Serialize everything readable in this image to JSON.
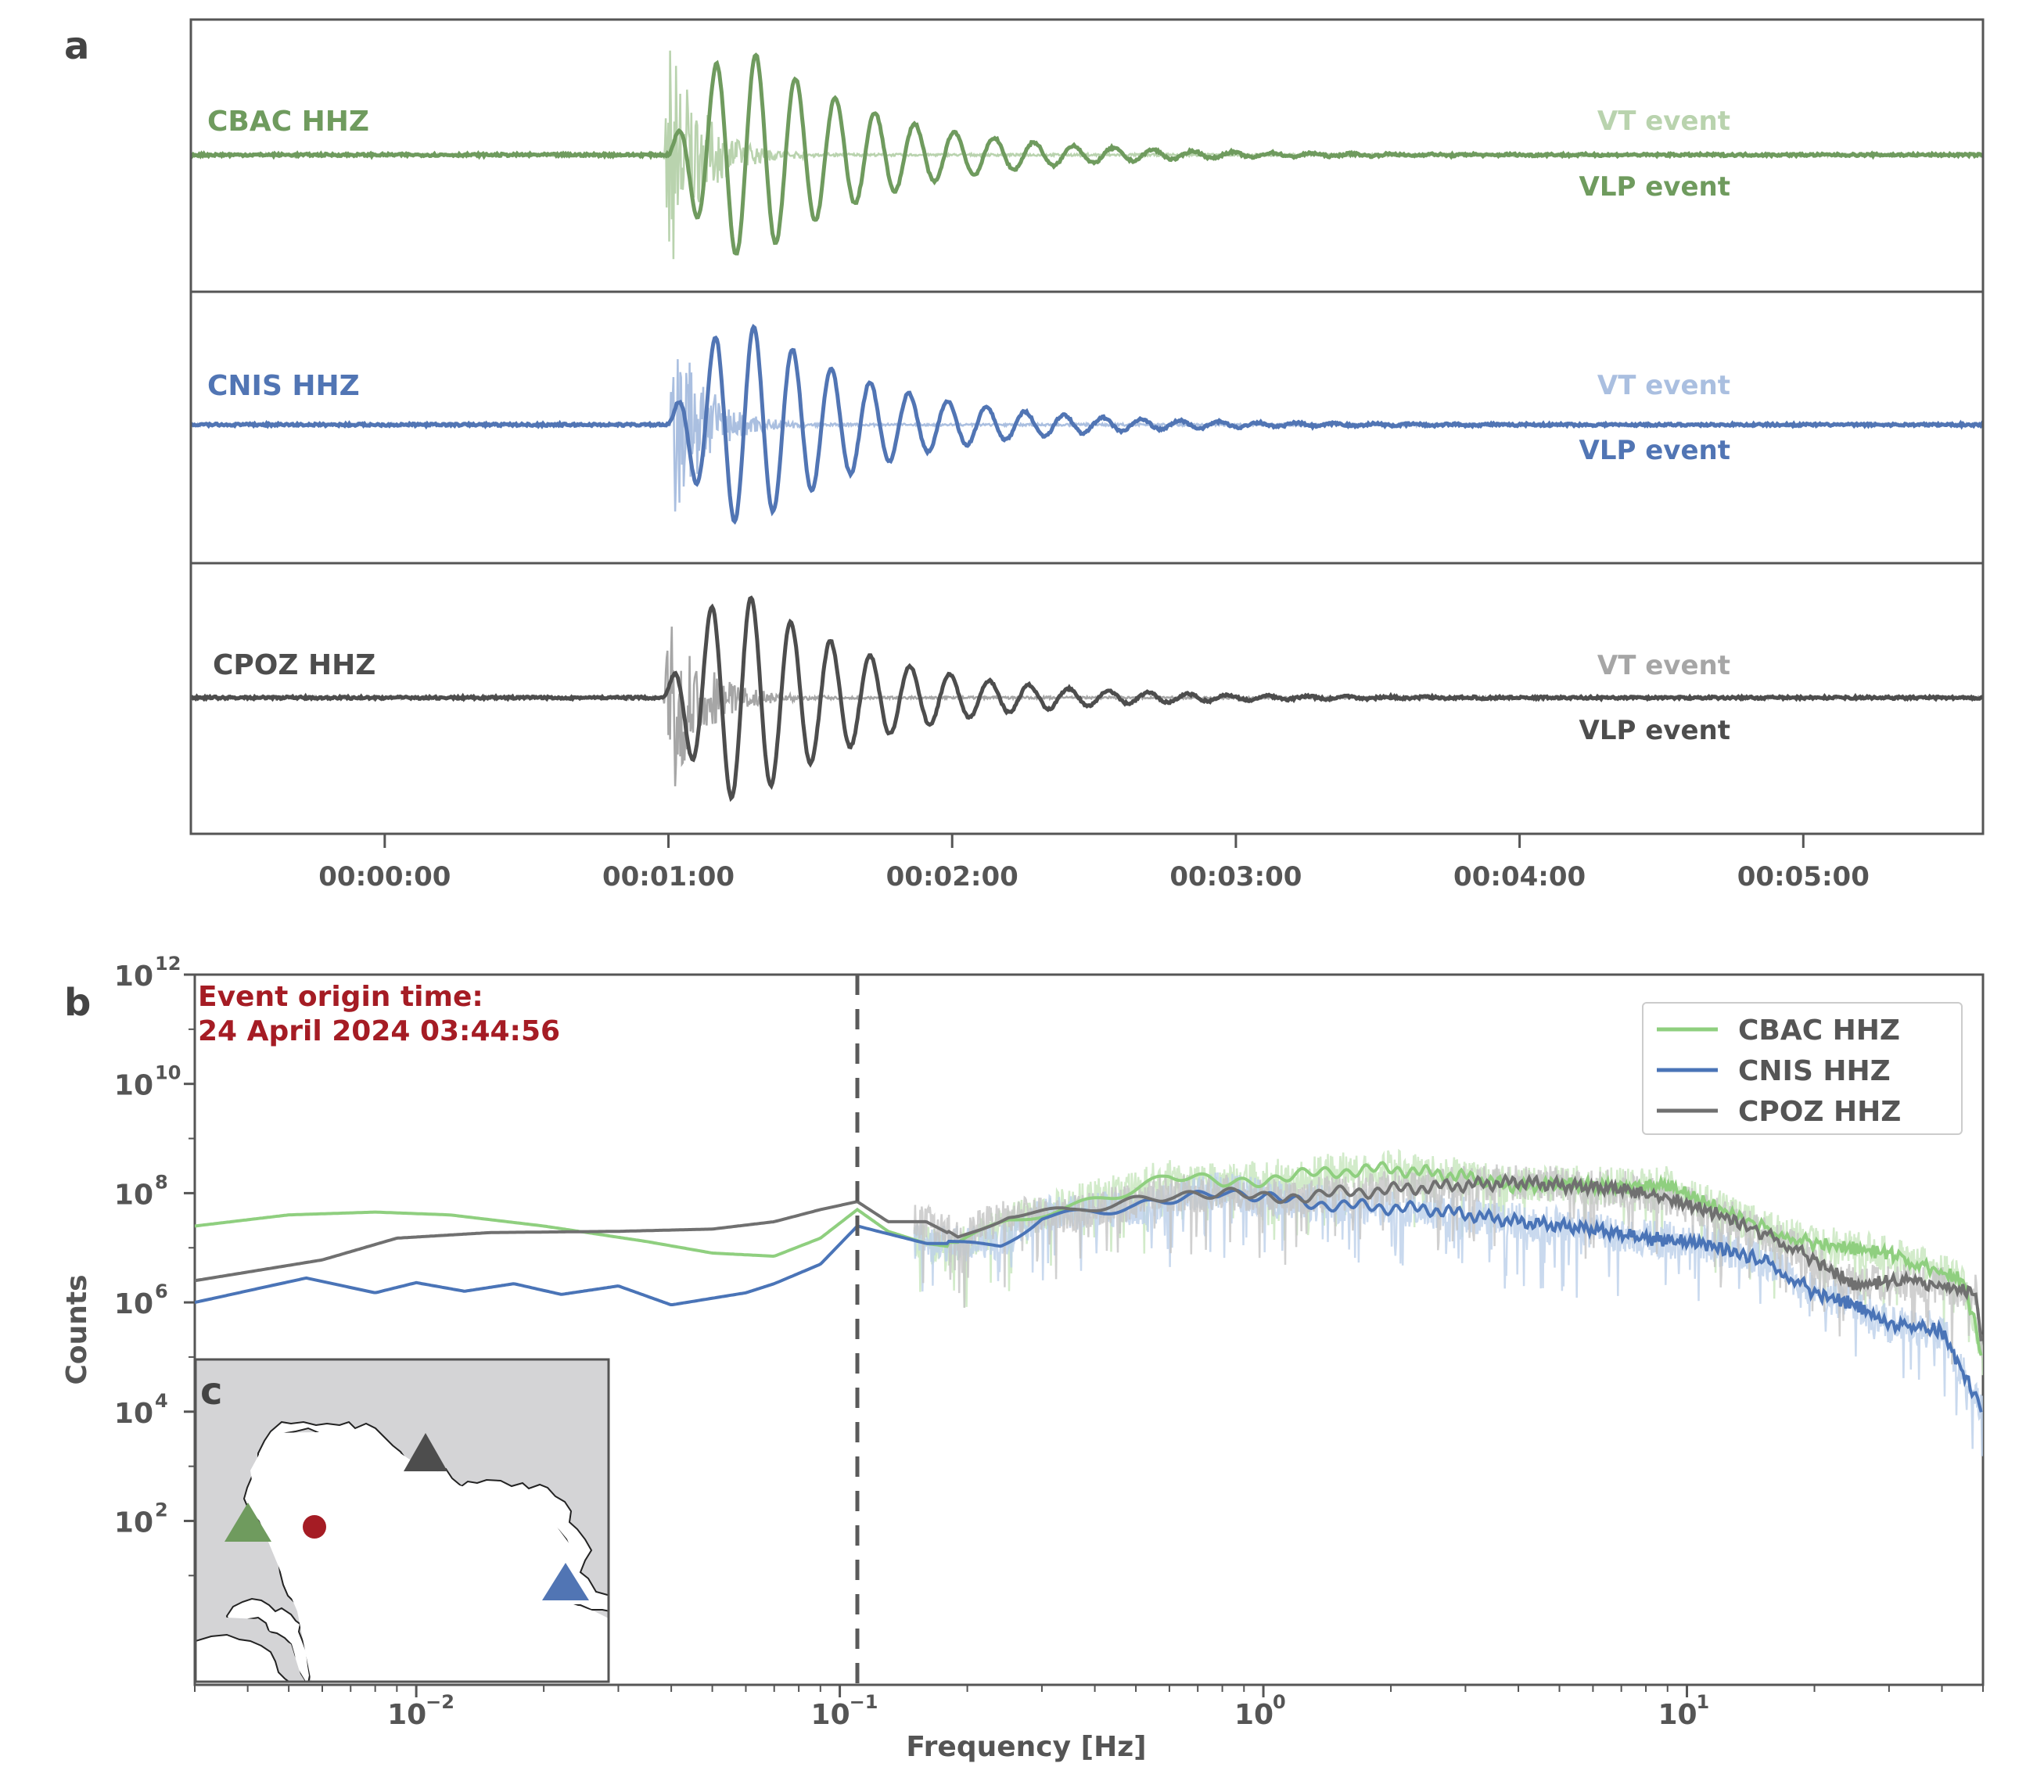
{
  "panels": {
    "a": {
      "label": "a"
    },
    "b": {
      "label": "b"
    },
    "c": {
      "label": "c"
    }
  },
  "colors": {
    "cbac": "#6f9b5e",
    "cbac_light": "#b9d3ae",
    "cnis": "#5175b4",
    "cnis_light": "#aabfe0",
    "cpoz": "#4d4d4d",
    "cpoz_light": "#a6a6a6",
    "origin_text": "#a51c24",
    "axis_text": "#555555",
    "map_land": "#ffffff",
    "map_water": "#d4d4d6",
    "psd_cbac": "#8fcf7f",
    "psd_cnis": "#4a74b7",
    "psd_cpoz": "#707070"
  },
  "chart_data": [
    {
      "type": "line",
      "panel": "a",
      "xlabel": "",
      "ylabel": "",
      "x_tick_labels": [
        "00:00:00",
        "00:01:00",
        "00:02:00",
        "00:03:00",
        "00:04:00",
        "00:05:00"
      ],
      "x_tick_seconds": [
        0,
        60,
        120,
        180,
        240,
        300
      ],
      "xlim_seconds": [
        -41,
        338
      ],
      "traces": [
        {
          "station": "CBAC HHZ",
          "color_key": "cbac",
          "vt_label": "VT event",
          "vlp_label": "VLP event",
          "vt_onset_s": 59,
          "vlp_onset_s": 60,
          "vlp_period_s": 8.4,
          "vlp_peak_time_s": 78,
          "vlp_peak_relative_amplitude": 1.0,
          "vt_relative_amplitude": 1.1
        },
        {
          "station": "CNIS HHZ",
          "color_key": "cnis",
          "vt_label": "VT event",
          "vlp_label": "VLP event",
          "vt_onset_s": 60,
          "vlp_onset_s": 60,
          "vlp_period_s": 8.2,
          "vlp_peak_time_s": 80,
          "vlp_peak_relative_amplitude": 1.0,
          "vt_relative_amplitude": 0.95
        },
        {
          "station": "CPOZ HHZ",
          "color_key": "cpoz",
          "vt_label": "VT event",
          "vlp_label": "VLP event",
          "vt_onset_s": 59,
          "vlp_onset_s": 59,
          "vlp_period_s": 8.4,
          "vlp_peak_time_s": 69,
          "vlp_peak_relative_amplitude": 1.0,
          "vt_relative_amplitude": 0.95
        }
      ]
    },
    {
      "type": "line",
      "panel": "b",
      "xlabel": "Frequency [Hz]",
      "ylabel": "Counts",
      "x_scale": "log",
      "y_scale": "log",
      "xlim": [
        0.003,
        50
      ],
      "ylim": [
        0.1,
        1000000000000.0
      ],
      "x_tick_labels": [
        "10",
        "10",
        "10",
        "10"
      ],
      "x_tick_exponents": [
        "−2",
        "−1",
        "0",
        "1"
      ],
      "x_tick_values": [
        0.01,
        0.1,
        1,
        10
      ],
      "y_tick_labels": [
        "10",
        "10",
        "10",
        "10",
        "10",
        "10"
      ],
      "y_tick_exponents": [
        "2",
        "4",
        "6",
        "8",
        "10",
        "12"
      ],
      "y_tick_values": [
        100,
        10000,
        1000000,
        100000000,
        10000000000,
        1000000000000
      ],
      "dashed_line_hz": 0.11,
      "annotation_line1": "Event origin time:",
      "annotation_line2": "24 April 2024 03:44:56",
      "legend_position": "top-right",
      "series": [
        {
          "name": "CBAC HHZ",
          "color_key": "psd_cbac",
          "freq": [
            0.003,
            0.005,
            0.008,
            0.012,
            0.02,
            0.035,
            0.05,
            0.07,
            0.09,
            0.11,
            0.13,
            0.16,
            0.19,
            0.25,
            0.4,
            0.6,
            0.8,
            1.0,
            1.5,
            2.0,
            3.0,
            4.0,
            5.0,
            7.0,
            9.0,
            12,
            16,
            20,
            30,
            45,
            50
          ],
          "counts": [
            25000000.0,
            40000000.0,
            45000000.0,
            40000000.0,
            25000000.0,
            13000000.0,
            8000000.0,
            7000000.0,
            15000000.0,
            50000000.0,
            20000000.0,
            12000000.0,
            10000000.0,
            30000000.0,
            80000000.0,
            200000000.0,
            150000000.0,
            180000000.0,
            250000000.0,
            280000000.0,
            200000000.0,
            130000000.0,
            150000000.0,
            130000000.0,
            140000000.0,
            50000000.0,
            20000000.0,
            12000000.0,
            8000000.0,
            2500000.0,
            100000.0
          ]
        },
        {
          "name": "CNIS HHZ",
          "color_key": "psd_cnis",
          "freq": [
            0.003,
            0.0055,
            0.008,
            0.01,
            0.013,
            0.017,
            0.022,
            0.03,
            0.04,
            0.06,
            0.07,
            0.09,
            0.11,
            0.13,
            0.16,
            0.19,
            0.24,
            0.3,
            0.5,
            0.8,
            1.0,
            1.5,
            2.5,
            4.0,
            6.0,
            8.0,
            11,
            16,
            20,
            25,
            30,
            40,
            50
          ],
          "counts": [
            1000000.0,
            2800000.0,
            1500000.0,
            2300000.0,
            1600000.0,
            2200000.0,
            1400000.0,
            2000000.0,
            900000.0,
            1500000.0,
            2200000.0,
            5000000.0,
            25000000.0,
            18000000.0,
            12000000.0,
            12000000.0,
            13000000.0,
            40000000.0,
            50000000.0,
            120000000.0,
            80000000.0,
            60000000.0,
            50000000.0,
            30000000.0,
            22000000.0,
            15000000.0,
            12000000.0,
            5000000.0,
            1500000.0,
            900000.0,
            400000.0,
            300000.0,
            10000.0
          ]
        },
        {
          "name": "CPOZ HHZ",
          "color_key": "psd_cpoz",
          "freq": [
            0.003,
            0.006,
            0.009,
            0.015,
            0.03,
            0.05,
            0.07,
            0.09,
            0.11,
            0.13,
            0.16,
            0.19,
            0.25,
            0.35,
            0.6,
            0.8,
            1.0,
            1.5,
            2.5,
            4.0,
            5.0,
            7.0,
            9.0,
            12,
            16,
            20,
            25,
            30,
            40,
            48,
            50
          ],
          "counts": [
            2500000.0,
            6000000.0,
            15000000.0,
            19000000.0,
            20000000.0,
            22000000.0,
            30000000.0,
            50000000.0,
            70000000.0,
            30000000.0,
            30000000.0,
            15000000.0,
            40000000.0,
            40000000.0,
            100000000.0,
            100000000.0,
            80000000.0,
            100000000.0,
            130000000.0,
            160000000.0,
            140000000.0,
            120000000.0,
            80000000.0,
            40000000.0,
            15000000.0,
            6000000.0,
            2000000.0,
            2500000.0,
            2000000.0,
            1500000.0,
            100000.0
          ]
        }
      ]
    },
    {
      "type": "map",
      "panel": "c",
      "markers": [
        {
          "kind": "triangle",
          "color_key": "cbac",
          "station": "CBAC HHZ"
        },
        {
          "kind": "triangle",
          "color_key": "cpoz",
          "station": "CPOZ HHZ"
        },
        {
          "kind": "triangle",
          "color_key": "cnis",
          "station": "CNIS HHZ"
        },
        {
          "kind": "circle",
          "color_key": "origin_text",
          "label": "event epicentre"
        }
      ]
    }
  ]
}
